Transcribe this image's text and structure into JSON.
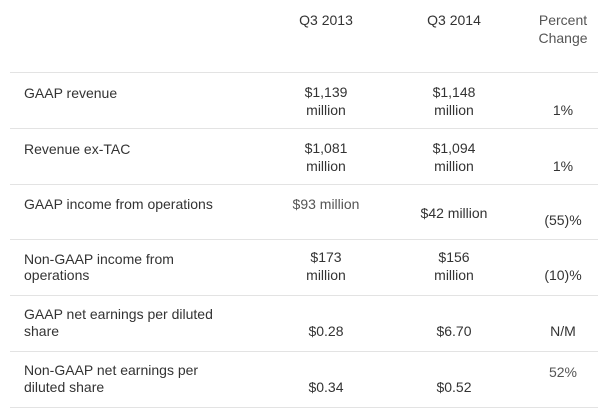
{
  "header": {
    "col_q3_2013": "Q3 2013",
    "col_q3_2014": "Q3 2014",
    "col_percent_line1": "Percent",
    "col_percent_line2": "Change"
  },
  "rows": [
    {
      "label_line1": "GAAP revenue",
      "label_line2": "",
      "q3_2013_line1": "$1,139",
      "q3_2013_line2": "million",
      "q3_2014_line1": "$1,148",
      "q3_2014_line2": "million",
      "change": "1%"
    },
    {
      "label_line1": "Revenue ex-TAC",
      "label_line2": "",
      "q3_2013_line1": "$1,081",
      "q3_2013_line2": "million",
      "q3_2014_line1": "$1,094",
      "q3_2014_line2": "million",
      "change": "1%"
    },
    {
      "label_line1": "GAAP income from operations",
      "label_line2": "",
      "q3_2013_line1": "$93 million",
      "q3_2013_line2": "",
      "q3_2014_line1": "$42 million",
      "q3_2014_line2": "",
      "change": "(55)%"
    },
    {
      "label_line1": "Non-GAAP income from",
      "label_line2": "operations",
      "q3_2013_line1": "$173",
      "q3_2013_line2": "million",
      "q3_2014_line1": "$156",
      "q3_2014_line2": "million",
      "change": "(10)%"
    },
    {
      "label_line1": "GAAP net earnings per diluted",
      "label_line2": "share",
      "q3_2013_line1": "$0.28",
      "q3_2013_line2": "",
      "q3_2014_line1": "$6.70",
      "q3_2014_line2": "",
      "change": "N/M"
    },
    {
      "label_line1": "Non-GAAP net earnings per",
      "label_line2": "diluted share",
      "q3_2013_line1": "$0.34",
      "q3_2013_line2": "",
      "q3_2014_line1": "$0.52",
      "q3_2014_line2": "",
      "change": "52%"
    }
  ]
}
